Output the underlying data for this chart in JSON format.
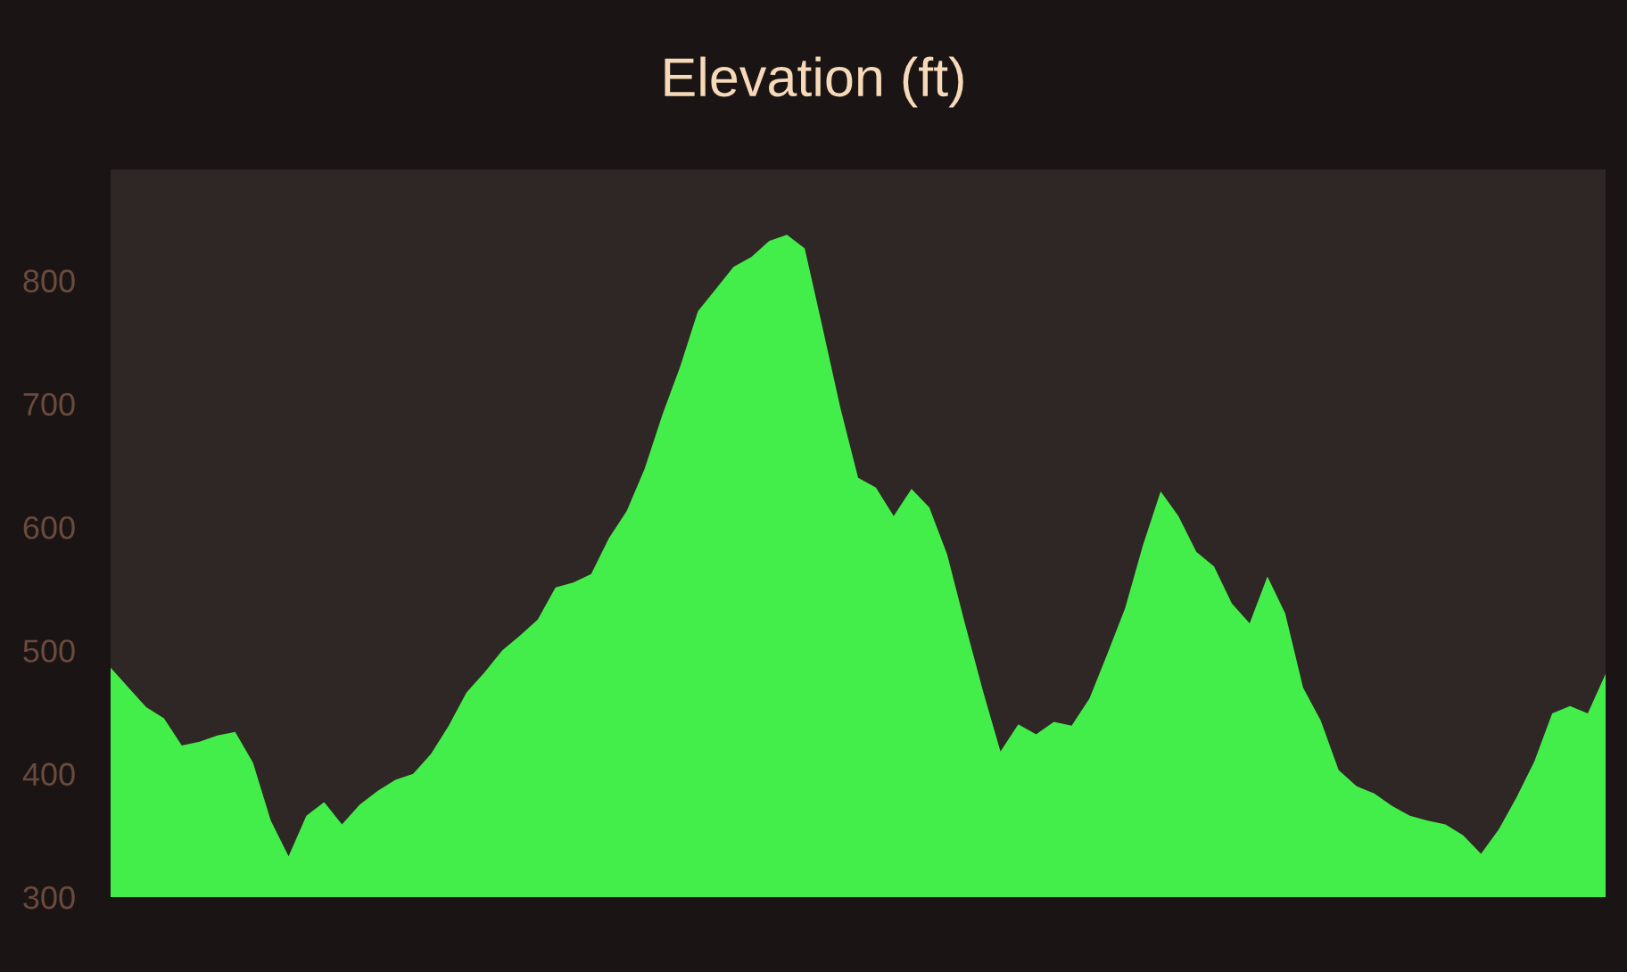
{
  "chart_data": {
    "type": "area",
    "title": "Elevation (ft)",
    "categories": [
      null,
      null,
      null,
      null,
      null,
      null,
      null,
      null,
      null,
      null,
      null,
      null,
      null,
      null,
      null,
      null,
      null,
      null,
      null,
      null,
      null,
      null,
      null,
      null,
      null,
      null,
      null,
      null,
      null,
      null,
      null,
      null,
      null,
      null,
      null,
      null,
      null,
      null,
      null,
      null,
      null,
      null,
      null,
      null,
      null,
      null,
      null,
      null,
      null,
      null,
      null,
      null,
      null,
      null,
      null,
      null,
      null,
      null,
      null,
      null,
      null,
      null,
      null,
      null,
      null,
      null,
      null,
      null,
      null,
      null,
      null,
      null,
      null,
      null,
      null,
      null,
      null,
      null,
      null,
      null,
      null,
      null,
      null,
      null,
      null
    ],
    "series": [
      {
        "color": "#44ee4a",
        "values": [
          486,
          470,
          454,
          445,
          423,
          426,
          431,
          434,
          409,
          362,
          333,
          366,
          377,
          359,
          375,
          386,
          395,
          400,
          416,
          439,
          466,
          482,
          500,
          512,
          525,
          551,
          555,
          562,
          591,
          613,
          647,
          691,
          730,
          775,
          793,
          811,
          819,
          832,
          837,
          826,
          762,
          697,
          640,
          632,
          609,
          631,
          616,
          578,
          522,
          468,
          418,
          440,
          432,
          442,
          439,
          461,
          497,
          534,
          585,
          629,
          609,
          580,
          568,
          538,
          522,
          560,
          530,
          470,
          443,
          403,
          390,
          384,
          374,
          366,
          362,
          359,
          350,
          335,
          355,
          381,
          410,
          449,
          455,
          449,
          481
        ]
      }
    ],
    "ylim": [
      300,
      890
    ],
    "yticks": [
      300,
      400,
      500,
      600,
      700,
      800
    ],
    "grid": false,
    "legend": false
  }
}
